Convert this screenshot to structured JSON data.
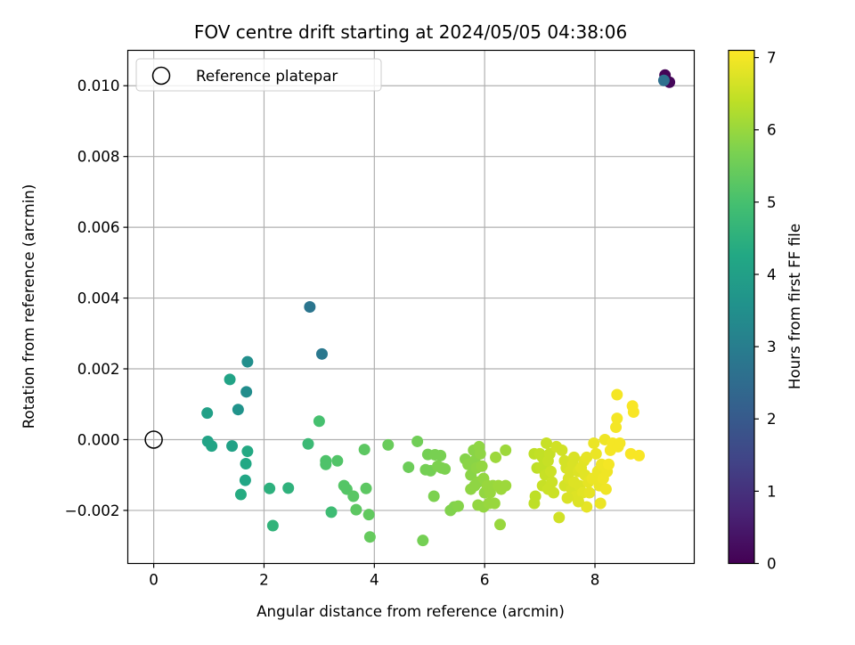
{
  "chart_data": {
    "type": "scatter",
    "title": "FOV centre drift starting at 2024/05/05 04:38:06",
    "xlabel": "Angular distance from reference (arcmin)",
    "ylabel": "Rotation from reference (arcmin)",
    "xlim": [
      -0.47,
      9.8
    ],
    "ylim": [
      -0.0035,
      0.011
    ],
    "xticks": [
      0,
      2,
      4,
      6,
      8
    ],
    "xtick_labels": [
      "0",
      "2",
      "4",
      "6",
      "8"
    ],
    "yticks": [
      -0.002,
      0.0,
      0.002,
      0.004,
      0.006,
      0.008,
      0.01
    ],
    "ytick_labels": [
      "−0.002",
      "0.000",
      "0.002",
      "0.004",
      "0.006",
      "0.008",
      "0.010"
    ],
    "grid": true,
    "legend": {
      "placement": "upper-left",
      "entries": [
        "Reference platepar"
      ]
    },
    "reference_point": {
      "x": 0,
      "y": 0,
      "marker": "open-circle"
    },
    "colorbar": {
      "label": "Hours from first FF file",
      "range": [
        0,
        7.1
      ],
      "ticks": [
        0,
        1,
        2,
        3,
        4,
        5,
        6,
        7
      ],
      "tick_labels": [
        "0",
        "1",
        "2",
        "3",
        "4",
        "5",
        "6",
        "7"
      ],
      "colormap": "viridis"
    },
    "series": [
      {
        "points": [
          {
            "x": 9.27,
            "y": 0.0103,
            "c": 0.05
          },
          {
            "x": 9.35,
            "y": 0.0101,
            "c": 0.1
          },
          {
            "x": 9.25,
            "y": 0.01015,
            "c": 2.6
          },
          {
            "x": 2.83,
            "y": 0.00375,
            "c": 2.75
          },
          {
            "x": 3.05,
            "y": 0.00242,
            "c": 2.85
          },
          {
            "x": 1.7,
            "y": 0.0022,
            "c": 3.5
          },
          {
            "x": 1.38,
            "y": 0.0017,
            "c": 4.1
          },
          {
            "x": 1.68,
            "y": 0.00135,
            "c": 3.45
          },
          {
            "x": 1.53,
            "y": 0.00085,
            "c": 3.6
          },
          {
            "x": 0.97,
            "y": 0.00075,
            "c": 4.0
          },
          {
            "x": 0.98,
            "y": -5e-05,
            "c": 4.1
          },
          {
            "x": 1.05,
            "y": -0.00018,
            "c": 4.15
          },
          {
            "x": 1.42,
            "y": -0.00018,
            "c": 4.05
          },
          {
            "x": 1.7,
            "y": -0.00033,
            "c": 4.3
          },
          {
            "x": 1.67,
            "y": -0.00068,
            "c": 4.25
          },
          {
            "x": 1.66,
            "y": -0.00115,
            "c": 4.2
          },
          {
            "x": 1.58,
            "y": -0.00155,
            "c": 4.35
          },
          {
            "x": 2.1,
            "y": -0.00138,
            "c": 4.5
          },
          {
            "x": 2.44,
            "y": -0.00137,
            "c": 4.55
          },
          {
            "x": 2.16,
            "y": -0.00243,
            "c": 4.6
          },
          {
            "x": 2.8,
            "y": -0.00012,
            "c": 4.8
          },
          {
            "x": 3.0,
            "y": 0.00052,
            "c": 5.0
          },
          {
            "x": 3.12,
            "y": -0.0006,
            "c": 5.1
          },
          {
            "x": 3.12,
            "y": -0.0007,
            "c": 5.1
          },
          {
            "x": 3.33,
            "y": -0.0006,
            "c": 5.15
          },
          {
            "x": 3.22,
            "y": -0.00205,
            "c": 4.85
          },
          {
            "x": 3.45,
            "y": -0.0013,
            "c": 5.2
          },
          {
            "x": 3.5,
            "y": -0.0014,
            "c": 5.2
          },
          {
            "x": 3.62,
            "y": -0.0016,
            "c": 5.25
          },
          {
            "x": 3.67,
            "y": -0.00198,
            "c": 5.3
          },
          {
            "x": 3.85,
            "y": -0.00138,
            "c": 5.3
          },
          {
            "x": 3.9,
            "y": -0.00212,
            "c": 5.35
          },
          {
            "x": 3.92,
            "y": -0.00275,
            "c": 5.4
          },
          {
            "x": 3.82,
            "y": -0.00028,
            "c": 5.3
          },
          {
            "x": 4.25,
            "y": -0.00015,
            "c": 5.45
          },
          {
            "x": 4.62,
            "y": -0.00078,
            "c": 5.5
          },
          {
            "x": 4.78,
            "y": -5e-05,
            "c": 5.55
          },
          {
            "x": 4.93,
            "y": -0.00085,
            "c": 5.6
          },
          {
            "x": 4.97,
            "y": -0.00042,
            "c": 5.6
          },
          {
            "x": 5.02,
            "y": -0.00088,
            "c": 5.6
          },
          {
            "x": 5.1,
            "y": -0.00043,
            "c": 5.65
          },
          {
            "x": 5.2,
            "y": -0.00045,
            "c": 5.65
          },
          {
            "x": 5.15,
            "y": -0.00075,
            "c": 5.7
          },
          {
            "x": 5.28,
            "y": -0.00083,
            "c": 5.7
          },
          {
            "x": 5.22,
            "y": -0.0008,
            "c": 5.7
          },
          {
            "x": 5.08,
            "y": -0.0016,
            "c": 5.7
          },
          {
            "x": 4.88,
            "y": -0.00285,
            "c": 5.6
          },
          {
            "x": 5.38,
            "y": -0.002,
            "c": 5.75
          },
          {
            "x": 5.45,
            "y": -0.0019,
            "c": 5.75
          },
          {
            "x": 5.52,
            "y": -0.00188,
            "c": 5.8
          },
          {
            "x": 5.65,
            "y": -0.00055,
            "c": 5.8
          },
          {
            "x": 5.7,
            "y": -0.0007,
            "c": 5.85
          },
          {
            "x": 5.75,
            "y": -0.001,
            "c": 5.85
          },
          {
            "x": 5.8,
            "y": -0.0003,
            "c": 5.85
          },
          {
            "x": 5.82,
            "y": -0.0006,
            "c": 5.85
          },
          {
            "x": 5.85,
            "y": -0.0008,
            "c": 5.9
          },
          {
            "x": 5.88,
            "y": -0.0012,
            "c": 5.9
          },
          {
            "x": 5.9,
            "y": -0.0002,
            "c": 5.9
          },
          {
            "x": 5.92,
            "y": -0.0004,
            "c": 5.9
          },
          {
            "x": 5.75,
            "y": -0.0014,
            "c": 5.9
          },
          {
            "x": 5.82,
            "y": -0.0013,
            "c": 5.9
          },
          {
            "x": 5.95,
            "y": -0.00075,
            "c": 5.95
          },
          {
            "x": 5.98,
            "y": -0.0011,
            "c": 5.95
          },
          {
            "x": 6.0,
            "y": -0.0015,
            "c": 5.95
          },
          {
            "x": 5.88,
            "y": -0.00185,
            "c": 5.95
          },
          {
            "x": 5.98,
            "y": -0.0019,
            "c": 5.95
          },
          {
            "x": 6.05,
            "y": -0.0013,
            "c": 6.0
          },
          {
            "x": 6.1,
            "y": -0.0015,
            "c": 6.0
          },
          {
            "x": 6.15,
            "y": -0.0013,
            "c": 6.0
          },
          {
            "x": 6.18,
            "y": -0.0018,
            "c": 6.0
          },
          {
            "x": 6.08,
            "y": -0.0018,
            "c": 6.0
          },
          {
            "x": 6.2,
            "y": -0.0005,
            "c": 6.05
          },
          {
            "x": 6.25,
            "y": -0.0013,
            "c": 6.05
          },
          {
            "x": 6.3,
            "y": -0.0014,
            "c": 6.05
          },
          {
            "x": 6.28,
            "y": -0.0024,
            "c": 6.0
          },
          {
            "x": 6.38,
            "y": -0.0003,
            "c": 6.05
          },
          {
            "x": 6.38,
            "y": -0.0013,
            "c": 6.05
          },
          {
            "x": 6.9,
            "y": -0.0004,
            "c": 6.4
          },
          {
            "x": 6.95,
            "y": -0.0008,
            "c": 6.4
          },
          {
            "x": 6.92,
            "y": -0.0016,
            "c": 6.4
          },
          {
            "x": 6.9,
            "y": -0.0018,
            "c": 6.4
          },
          {
            "x": 7.0,
            "y": -0.0004,
            "c": 6.45
          },
          {
            "x": 7.05,
            "y": -0.0005,
            "c": 6.45
          },
          {
            "x": 7.02,
            "y": -0.0008,
            "c": 6.45
          },
          {
            "x": 7.08,
            "y": -0.0007,
            "c": 6.45
          },
          {
            "x": 7.1,
            "y": -0.001,
            "c": 6.5
          },
          {
            "x": 7.05,
            "y": -0.0013,
            "c": 6.5
          },
          {
            "x": 7.12,
            "y": -0.0001,
            "c": 6.5
          },
          {
            "x": 7.15,
            "y": -0.0006,
            "c": 6.5
          },
          {
            "x": 7.18,
            "y": -0.0004,
            "c": 6.5
          },
          {
            "x": 7.2,
            "y": -0.0009,
            "c": 6.55
          },
          {
            "x": 7.22,
            "y": -0.0012,
            "c": 6.55
          },
          {
            "x": 7.15,
            "y": -0.0014,
            "c": 6.55
          },
          {
            "x": 7.25,
            "y": -0.0015,
            "c": 6.55
          },
          {
            "x": 7.3,
            "y": -0.0002,
            "c": 6.6
          },
          {
            "x": 7.35,
            "y": -0.0022,
            "c": 6.6
          },
          {
            "x": 7.45,
            "y": -0.0006,
            "c": 6.65
          },
          {
            "x": 7.48,
            "y": -0.0008,
            "c": 6.65
          },
          {
            "x": 7.45,
            "y": -0.0013,
            "c": 6.65
          },
          {
            "x": 7.52,
            "y": -0.0011,
            "c": 6.7
          },
          {
            "x": 7.55,
            "y": -0.0009,
            "c": 6.7
          },
          {
            "x": 7.58,
            "y": -0.0014,
            "c": 6.7
          },
          {
            "x": 7.6,
            "y": -0.0007,
            "c": 6.7
          },
          {
            "x": 7.62,
            "y": -0.0012,
            "c": 6.75
          },
          {
            "x": 7.65,
            "y": -0.0016,
            "c": 6.75
          },
          {
            "x": 7.7,
            "y": -0.0009,
            "c": 6.75
          },
          {
            "x": 7.72,
            "y": -0.0013,
            "c": 6.75
          },
          {
            "x": 7.75,
            "y": -0.0008,
            "c": 6.8
          },
          {
            "x": 7.78,
            "y": -0.0015,
            "c": 6.8
          },
          {
            "x": 7.8,
            "y": -0.0006,
            "c": 6.8
          },
          {
            "x": 7.82,
            "y": -0.001,
            "c": 6.8
          },
          {
            "x": 7.85,
            "y": -0.0005,
            "c": 6.85
          },
          {
            "x": 7.85,
            "y": -0.0019,
            "c": 6.85
          },
          {
            "x": 7.88,
            "y": -0.0012,
            "c": 6.85
          },
          {
            "x": 7.9,
            "y": -0.0015,
            "c": 6.85
          },
          {
            "x": 7.95,
            "y": -0.0011,
            "c": 6.9
          },
          {
            "x": 7.98,
            "y": -0.0001,
            "c": 6.9
          },
          {
            "x": 8.02,
            "y": -0.0004,
            "c": 6.9
          },
          {
            "x": 8.05,
            "y": -0.0009,
            "c": 6.9
          },
          {
            "x": 8.08,
            "y": -0.0013,
            "c": 6.9
          },
          {
            "x": 8.1,
            "y": -0.0018,
            "c": 6.9
          },
          {
            "x": 8.12,
            "y": -0.0007,
            "c": 6.95
          },
          {
            "x": 8.15,
            "y": -0.0011,
            "c": 6.95
          },
          {
            "x": 8.18,
            "y": 0.0,
            "c": 6.95
          },
          {
            "x": 8.2,
            "y": -0.0014,
            "c": 6.95
          },
          {
            "x": 8.22,
            "y": -0.0009,
            "c": 6.95
          },
          {
            "x": 8.25,
            "y": -0.0007,
            "c": 7.0
          },
          {
            "x": 8.28,
            "y": -0.0003,
            "c": 7.0
          },
          {
            "x": 8.32,
            "y": -0.0001,
            "c": 7.0
          },
          {
            "x": 8.38,
            "y": 0.00035,
            "c": 7.0
          },
          {
            "x": 8.4,
            "y": 0.0006,
            "c": 7.0
          },
          {
            "x": 8.4,
            "y": 0.00127,
            "c": 7.0
          },
          {
            "x": 8.42,
            "y": -0.0002,
            "c": 7.0
          },
          {
            "x": 8.45,
            "y": -0.0001,
            "c": 7.0
          },
          {
            "x": 8.65,
            "y": -0.0004,
            "c": 7.05
          },
          {
            "x": 8.68,
            "y": 0.00095,
            "c": 7.05
          },
          {
            "x": 8.7,
            "y": 0.00078,
            "c": 7.05
          },
          {
            "x": 8.8,
            "y": -0.00045,
            "c": 7.05
          },
          {
            "x": 7.4,
            "y": -0.0003,
            "c": 6.6
          },
          {
            "x": 7.62,
            "y": -0.0005,
            "c": 6.7
          },
          {
            "x": 7.5,
            "y": -0.00165,
            "c": 6.7
          },
          {
            "x": 7.7,
            "y": -0.00175,
            "c": 6.75
          }
        ]
      }
    ]
  }
}
